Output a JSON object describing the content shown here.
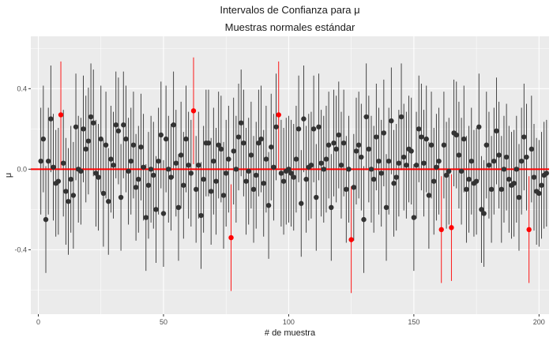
{
  "chart_data": {
    "type": "scatter",
    "title": "Intervalos de Confianza para  μ",
    "subtitle": "Muestras normales estándar",
    "xlabel": "# de muestra",
    "ylabel": "μ",
    "xlim": [
      -3,
      204
    ],
    "ylim": [
      -0.72,
      0.66
    ],
    "x_ticks": [
      0,
      50,
      100,
      150,
      200
    ],
    "x_tick_labels": [
      "0",
      "50",
      "100",
      "150",
      "200"
    ],
    "y_ticks": [
      -0.4,
      0.0,
      0.4
    ],
    "y_tick_labels": [
      "-0.4",
      "0.0",
      "0.4"
    ],
    "reference_line": 0,
    "grid": true,
    "colors": {
      "panel": "#ebebeb",
      "grid": "#ffffff",
      "covering": "#333333",
      "missing": "#ff0000",
      "reference_line": "#ff0000"
    },
    "n_samples": 200,
    "half_width": 0.265,
    "means": [
      0.04,
      0.15,
      -0.25,
      0.04,
      0.25,
      0.01,
      -0.07,
      -0.06,
      0.27,
      0.03,
      -0.11,
      -0.16,
      -0.05,
      -0.13,
      0.21,
      0.0,
      -0.01,
      0.2,
      0.1,
      0.14,
      0.26,
      0.23,
      -0.02,
      -0.04,
      0.15,
      -0.12,
      0.12,
      -0.16,
      0.05,
      0.02,
      0.22,
      0.19,
      -0.14,
      0.22,
      0.15,
      -0.01,
      0.04,
      0.12,
      -0.09,
      -0.05,
      0.11,
      0.01,
      -0.24,
      -0.08,
      0.0,
      -0.03,
      -0.2,
      0.04,
      0.17,
      -0.22,
      0.15,
      0.0,
      -0.04,
      0.22,
      0.03,
      -0.19,
      0.07,
      -0.08,
      0.15,
      0.02,
      -0.02,
      0.29,
      -0.1,
      0.02,
      -0.23,
      -0.05,
      0.13,
      0.13,
      -0.11,
      0.04,
      -0.06,
      0.12,
      0.1,
      -0.13,
      -0.02,
      0.05,
      -0.34,
      0.09,
      0.0,
      0.16,
      0.23,
      0.13,
      -0.06,
      -0.01,
      0.07,
      -0.1,
      -0.03,
      0.13,
      0.15,
      -0.07,
      0.05,
      -0.18,
      0.11,
      0.01,
      0.21,
      0.27,
      -0.02,
      -0.06,
      -0.01,
      0.0,
      -0.02,
      -0.04,
      0.05,
      0.2,
      -0.17,
      0.25,
      -0.05,
      0.01,
      0.02,
      0.2,
      -0.14,
      0.21,
      0.03,
      0.0,
      0.05,
      0.12,
      -0.19,
      0.13,
      0.1,
      0.17,
      0.02,
      0.13,
      -0.1,
      0.0,
      -0.35,
      -0.09,
      0.09,
      0.12,
      0.06,
      -0.25,
      0.26,
      0.1,
      0.0,
      -0.05,
      0.16,
      0.04,
      -0.02,
      0.18,
      -0.19,
      0.04,
      0.24,
      -0.07,
      -0.04,
      0.03,
      0.26,
      0.06,
      0.02,
      0.1,
      0.09,
      -0.24,
      0.02,
      0.2,
      0.16,
      0.03,
      0.15,
      -0.13,
      0.12,
      -0.06,
      0.01,
      0.04,
      -0.3,
      0.12,
      -0.03,
      -0.01,
      -0.29,
      0.18,
      0.17,
      0.07,
      -0.01,
      0.15,
      -0.1,
      -0.05,
      0.04,
      -0.07,
      -0.06,
      0.21,
      -0.2,
      -0.22,
      0.12,
      0.02,
      -0.1,
      0.04,
      0.19,
      0.07,
      -0.1,
      0.0,
      0.06,
      -0.05,
      -0.08,
      -0.07,
      0.0,
      -0.14,
      0.04,
      0.16,
      0.06,
      -0.3,
      0.1,
      -0.04,
      -0.11,
      -0.12,
      -0.08,
      -0.03,
      -0.02
    ]
  }
}
